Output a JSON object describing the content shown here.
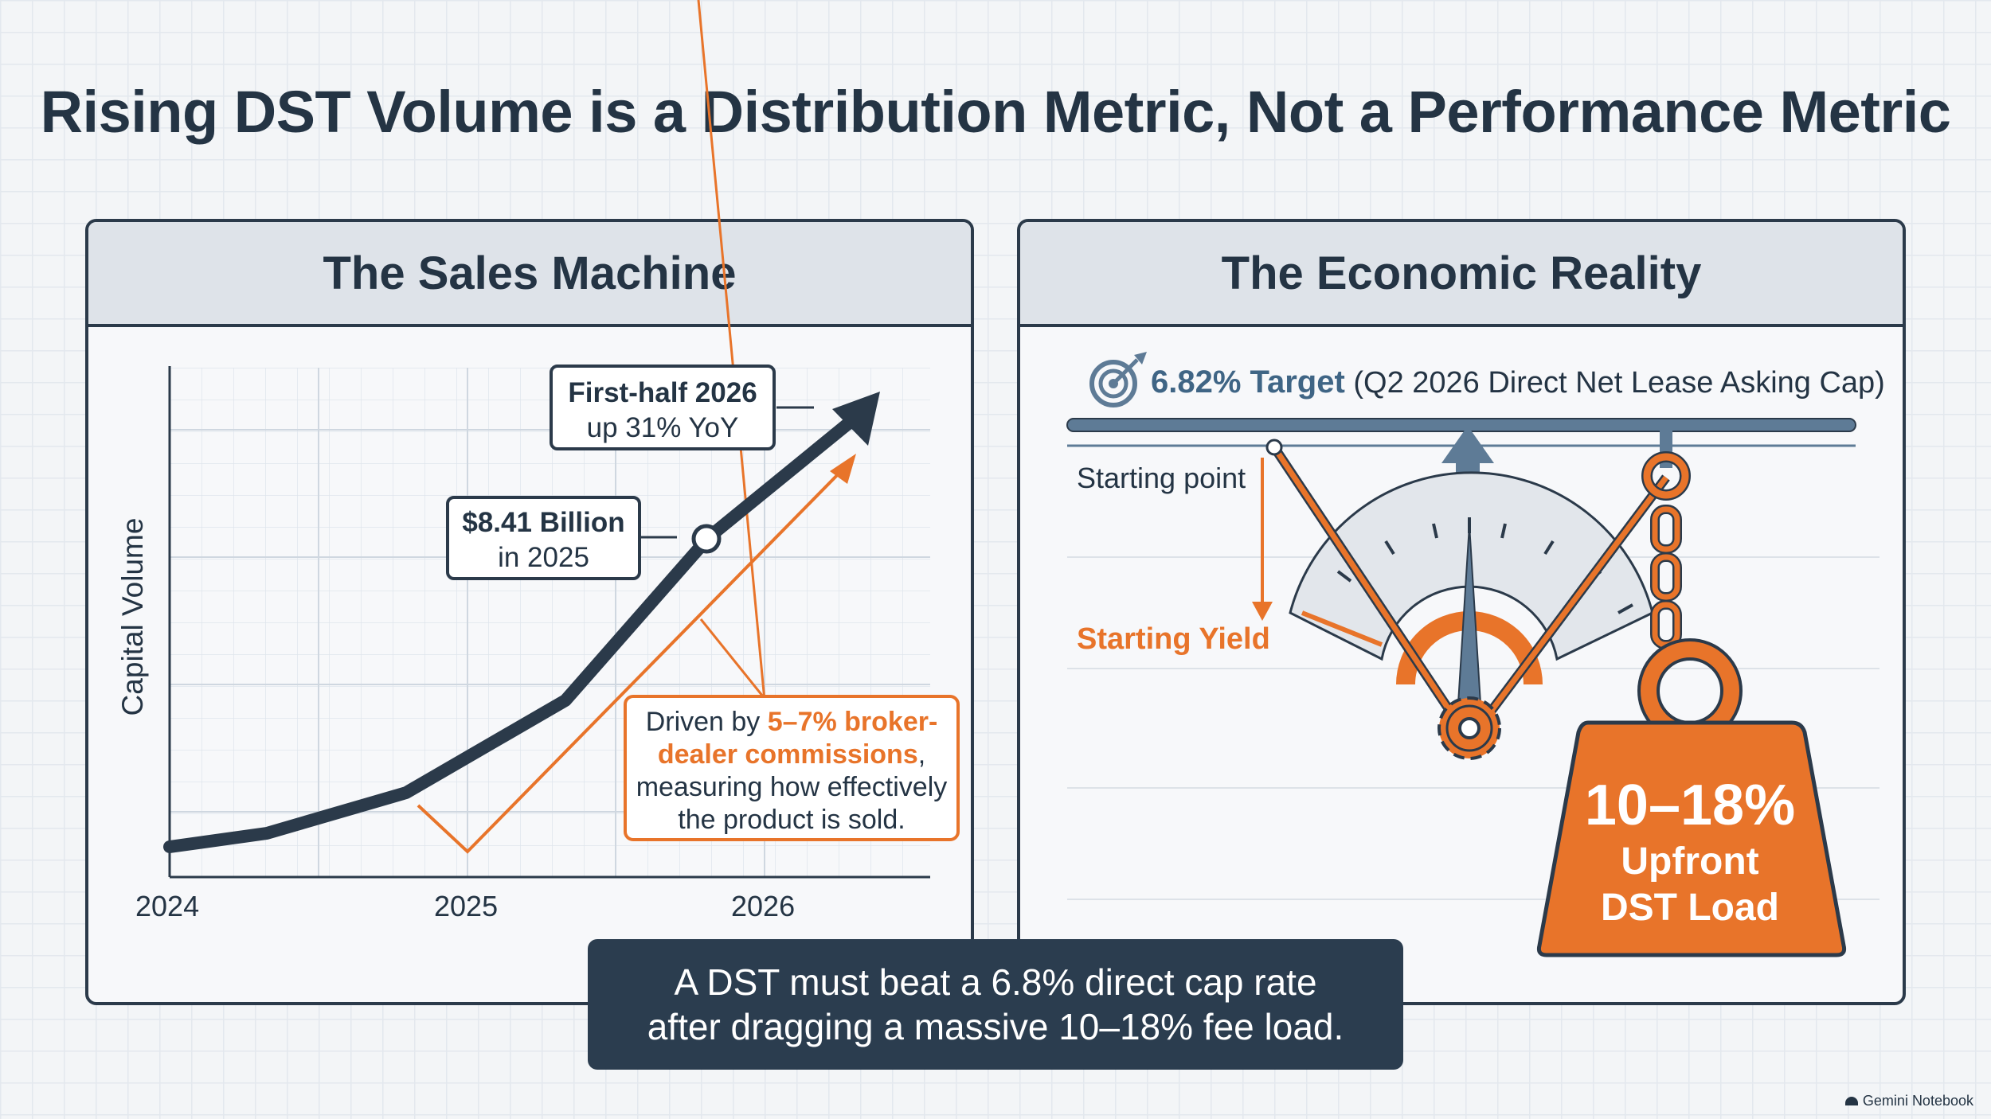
{
  "title": "Rising DST Volume is a Distribution Metric, Not a Performance Metric",
  "left_panel": {
    "header": "The Sales Machine",
    "y_axis_label": "Capital Volume",
    "x_ticks": [
      "2024",
      "2025",
      "2026"
    ],
    "callout_top": {
      "line1": "First-half 2026",
      "line2": "up 31% YoY"
    },
    "callout_mid": {
      "line1": "$8.41 Billion",
      "line2": "in 2025"
    },
    "driver_box": {
      "pre": "Driven by ",
      "highlight_line1": "5–7% broker-",
      "highlight_line2": "dealer commissions",
      "post": ",",
      "line3": "measuring how effectively",
      "line4": "the product is sold."
    }
  },
  "right_panel": {
    "header": "The Economic Reality",
    "target_strong": "6.82% Target",
    "target_rest": " (Q2 2026 Direct Net Lease Asking Cap)",
    "starting_point": "Starting point",
    "starting_yield": "Starting Yield",
    "weight": {
      "line1": "10–18%",
      "line2": "Upfront",
      "line3": "DST Load"
    }
  },
  "banner": {
    "line1": "A DST must beat a 6.8% direct cap rate",
    "line2": "after dragging a massive 10–18% fee load."
  },
  "watermark": "Gemini Notebook",
  "colors": {
    "navy": "#2b3a4a",
    "orange": "#e8742a",
    "steel": "#5e7b96",
    "banner": "#2b3d4f"
  },
  "icons": [
    "target-icon",
    "arrow-up-icon",
    "gear-icon",
    "chain-icon",
    "weight-icon"
  ]
}
